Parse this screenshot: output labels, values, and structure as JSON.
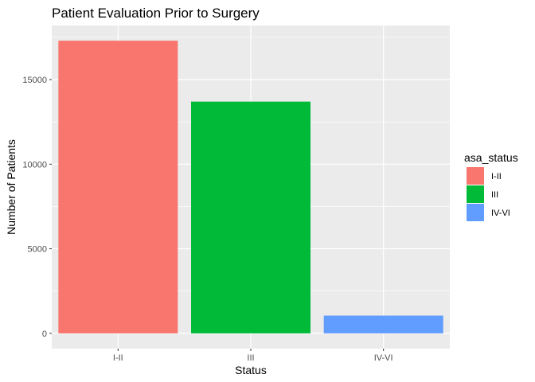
{
  "chart_data": {
    "type": "bar",
    "title": "Patient Evaluation Prior to Surgery",
    "xlabel": "Status",
    "ylabel": "Number of Patients",
    "categories": [
      "I-II",
      "III",
      "IV-VI"
    ],
    "values": [
      17300,
      13700,
      1050
    ],
    "colors": [
      "#F8766D",
      "#00BA38",
      "#619CFF"
    ],
    "ylim": [
      -900,
      18200
    ],
    "yticks": [
      0,
      5000,
      10000,
      15000
    ],
    "ytick_labels": [
      "0",
      "5000",
      "10000",
      "15000"
    ],
    "grid": true,
    "legend": {
      "title": "asa_status",
      "position": "right",
      "entries": [
        "I-II",
        "III",
        "IV-VI"
      ]
    }
  }
}
